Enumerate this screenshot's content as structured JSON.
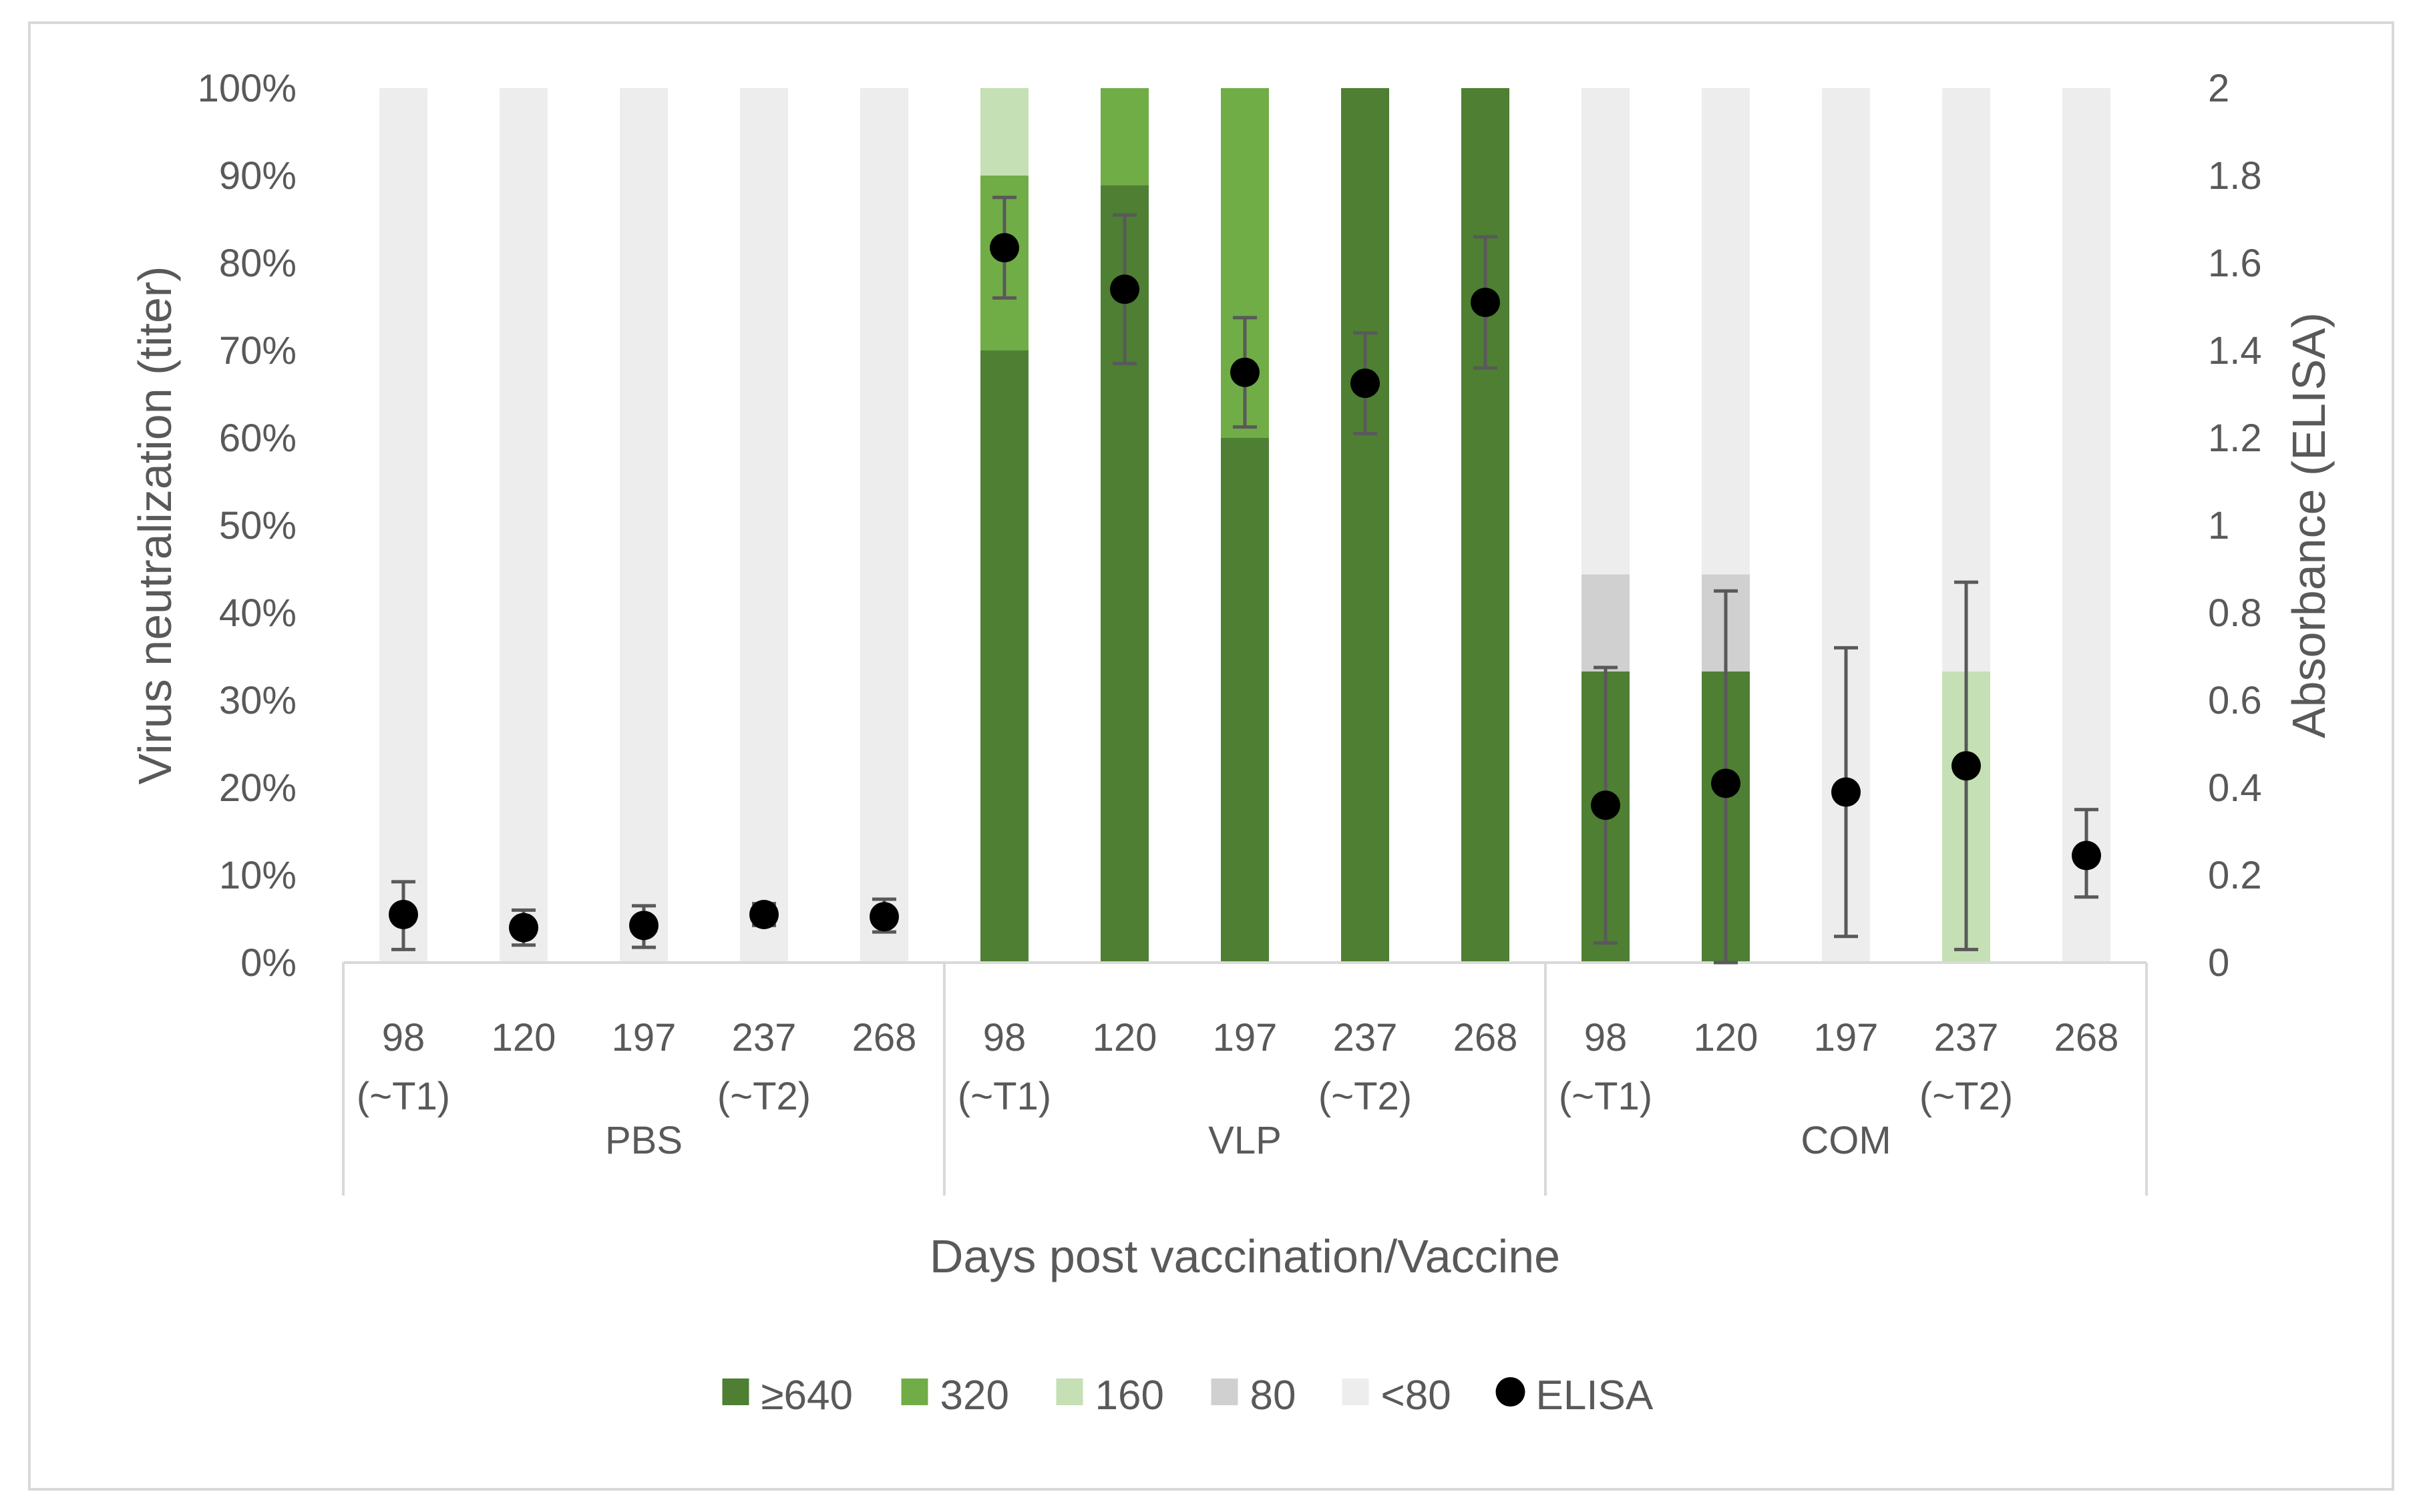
{
  "chart_data": {
    "type": "bar",
    "subtype": "stacked-percent-bar-with-scatter",
    "xlabel": "Days post vaccination/Vaccine",
    "ylabel": "Virus neutralization (titer)",
    "y2label": "Absorbance (ELISA)",
    "ylim": [
      0,
      100
    ],
    "y2lim": [
      0,
      2
    ],
    "yticks": [
      "0%",
      "10%",
      "20%",
      "30%",
      "40%",
      "50%",
      "60%",
      "70%",
      "80%",
      "90%",
      "100%"
    ],
    "y2ticks": [
      "0",
      "0.2",
      "0.4",
      "0.6",
      "0.8",
      "1",
      "1.2",
      "1.4",
      "1.6",
      "1.8",
      "2"
    ],
    "groups": [
      {
        "name": "PBS",
        "days": [
          {
            "label": "98",
            "sub": "(~T1)"
          },
          {
            "label": "120",
            "sub": ""
          },
          {
            "label": "197",
            "sub": ""
          },
          {
            "label": "237",
            "sub": "(~T2)"
          },
          {
            "label": "268",
            "sub": ""
          }
        ]
      },
      {
        "name": "VLP",
        "days": [
          {
            "label": "98",
            "sub": "(~T1)"
          },
          {
            "label": "120",
            "sub": ""
          },
          {
            "label": "197",
            "sub": ""
          },
          {
            "label": "237",
            "sub": "(~T2)"
          },
          {
            "label": "268",
            "sub": ""
          }
        ]
      },
      {
        "name": "COM",
        "days": [
          {
            "label": "98",
            "sub": "(~T1)"
          },
          {
            "label": "120",
            "sub": ""
          },
          {
            "label": "197",
            "sub": ""
          },
          {
            "label": "237",
            "sub": "(~T2)"
          },
          {
            "label": "268",
            "sub": ""
          }
        ]
      }
    ],
    "series": [
      {
        "name": "≥640",
        "color": "#4e7f33",
        "values": [
          0,
          0,
          0,
          0,
          0,
          70,
          88.9,
          60,
          100,
          100,
          33.3,
          33.3,
          0,
          0,
          0
        ]
      },
      {
        "name": "320",
        "color": "#70ad47",
        "values": [
          0,
          0,
          0,
          0,
          0,
          20,
          11.1,
          40,
          0,
          0,
          0,
          0,
          0,
          0,
          0
        ]
      },
      {
        "name": "160",
        "color": "#c5e0b4",
        "values": [
          0,
          0,
          0,
          0,
          0,
          10,
          0,
          0,
          0,
          0,
          0,
          0,
          0,
          33.3,
          0
        ]
      },
      {
        "name": "80",
        "color": "#d0d0d0",
        "values": [
          0,
          0,
          0,
          0,
          0,
          0,
          0,
          0,
          0,
          0,
          11.1,
          11.1,
          0,
          0,
          0
        ]
      },
      {
        "name": "<80",
        "color": "#ededed",
        "values": [
          100,
          100,
          100,
          100,
          100,
          0,
          0,
          0,
          0,
          0,
          55.6,
          55.6,
          100,
          66.7,
          100
        ]
      }
    ],
    "elisa": {
      "name": "ELISA",
      "color": "#000000",
      "values": [
        0.11,
        0.08,
        0.085,
        0.11,
        0.105,
        1.635,
        1.54,
        1.35,
        1.325,
        1.51,
        0.36,
        0.41,
        0.39,
        0.45,
        0.245
      ],
      "err_low": [
        0.08,
        0.04,
        0.05,
        0.025,
        0.035,
        0.115,
        0.17,
        0.125,
        0.115,
        0.15,
        0.315,
        0.41,
        0.33,
        0.42,
        0.095
      ],
      "err_high": [
        0.075,
        0.04,
        0.045,
        0.025,
        0.04,
        0.115,
        0.17,
        0.125,
        0.115,
        0.15,
        0.315,
        0.44,
        0.33,
        0.42,
        0.105
      ]
    },
    "legend": [
      "≥640",
      "320",
      "160",
      "80",
      "<80",
      "ELISA"
    ],
    "legend_position": "bottom",
    "grid": false
  }
}
